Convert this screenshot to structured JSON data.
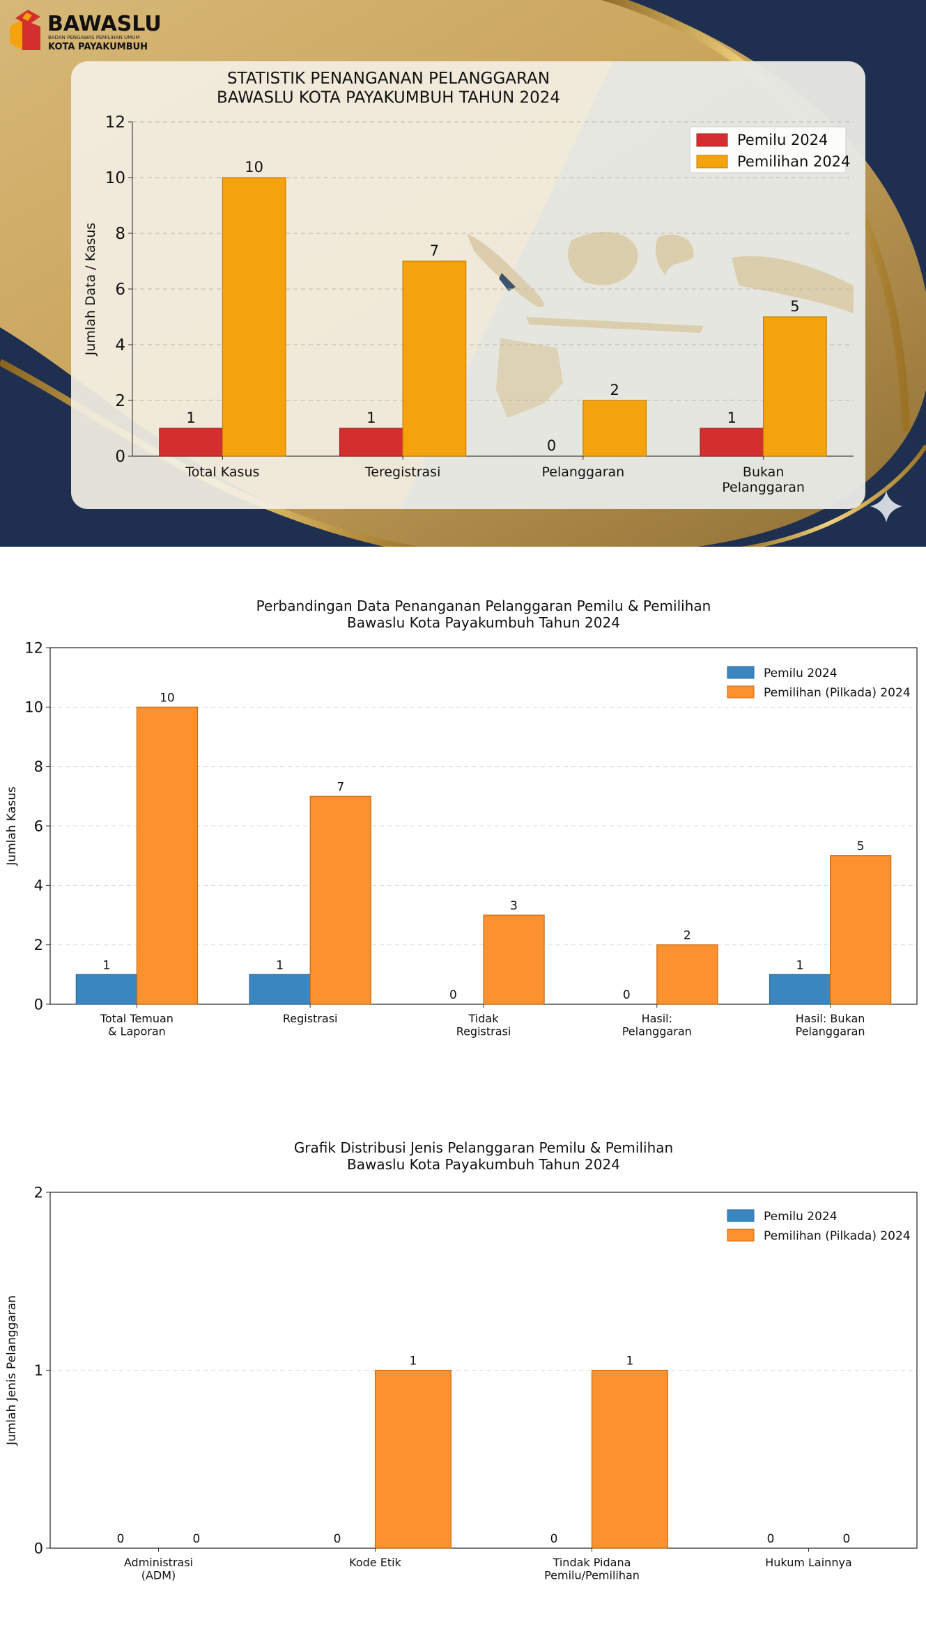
{
  "brand": {
    "name": "BAWASLU",
    "tagline": "BADAN PENGAWAS PEMILIHAN UMUM",
    "city": "KOTA PAYAKUMBUH"
  },
  "colors": {
    "navy": "#1e2f4f",
    "gold": "#c9a45c",
    "red": "#d32f2f",
    "orange_amber": "#f5a30c",
    "blue": "#3a86c0",
    "orange": "#fb922f"
  },
  "chart_data": [
    {
      "type": "bar",
      "title": "STATISTIK PENANGANAN PELANGGARAN",
      "subtitle": "BAWASLU KOTA PAYAKUMBUH TAHUN 2024",
      "xlabel": "",
      "ylabel": "Jumlah Data / Kasus",
      "ylim": [
        0,
        12
      ],
      "yticks": [
        "0",
        "2",
        "4",
        "6",
        "8",
        "10",
        "12"
      ],
      "grid": true,
      "legend": "top-right",
      "categories": [
        "Total Kasus",
        "Teregistrasi",
        "Pelanggaran",
        "Bukan\nPelanggaran"
      ],
      "series": [
        {
          "name": "Pemilu 2024",
          "values": [
            1,
            1,
            0,
            1
          ],
          "labels": [
            "1",
            "1",
            "0",
            "1"
          ],
          "color": "#d32f2f"
        },
        {
          "name": "Pemilihan 2024",
          "values": [
            10,
            7,
            2,
            5
          ],
          "labels": [
            "10",
            "7",
            "2",
            "5"
          ],
          "color": "#f5a30c"
        }
      ]
    },
    {
      "type": "bar",
      "title": "Perbandingan Data Penanganan Pelanggaran Pemilu & Pemilihan",
      "subtitle": "Bawaslu Kota Payakumbuh Tahun 2024",
      "xlabel": "",
      "ylabel": "Jumlah Kasus",
      "ylim": [
        0,
        12
      ],
      "yticks": [
        "0",
        "2",
        "4",
        "6",
        "8",
        "10",
        "12"
      ],
      "grid": true,
      "legend": "top-right",
      "categories": [
        "Total Temuan\n& Laporan",
        "Registrasi",
        "Tidak\nRegistrasi",
        "Hasil:\nPelanggaran",
        "Hasil: Bukan\nPelanggaran"
      ],
      "series": [
        {
          "name": "Pemilu 2024",
          "values": [
            1,
            1,
            0,
            0,
            1
          ],
          "labels": [
            "1",
            "1",
            "0",
            "0",
            "1"
          ],
          "color": "#3a86c0"
        },
        {
          "name": "Pemilihan (Pilkada) 2024",
          "values": [
            10,
            7,
            3,
            2,
            5
          ],
          "labels": [
            "10",
            "7",
            "3",
            "2",
            "5"
          ],
          "color": "#fb922f"
        }
      ]
    },
    {
      "type": "bar",
      "title": "Grafik Distribusi Jenis Pelanggaran Pemilu & Pemilihan",
      "subtitle": "Bawaslu Kota Payakumbuh Tahun 2024",
      "xlabel": "",
      "ylabel": "Jumlah Jenis Pelanggaran",
      "ylim": [
        0,
        2
      ],
      "yticks": [
        "0",
        "1",
        "2"
      ],
      "grid": true,
      "legend": "top-right",
      "categories": [
        "Administrasi\n(ADM)",
        "Kode Etik",
        "Tindak Pidana\nPemilu/Pemilihan",
        "Hukum Lainnya"
      ],
      "series": [
        {
          "name": "Pemilu 2024",
          "values": [
            0,
            0,
            0,
            0
          ],
          "labels": [
            "0",
            "0",
            "0",
            "0"
          ],
          "color": "#3a86c0"
        },
        {
          "name": "Pemilihan (Pilkada) 2024",
          "values": [
            0,
            1,
            1,
            0
          ],
          "labels": [
            "0",
            "1",
            "1",
            "0"
          ],
          "color": "#fb922f"
        }
      ]
    }
  ]
}
